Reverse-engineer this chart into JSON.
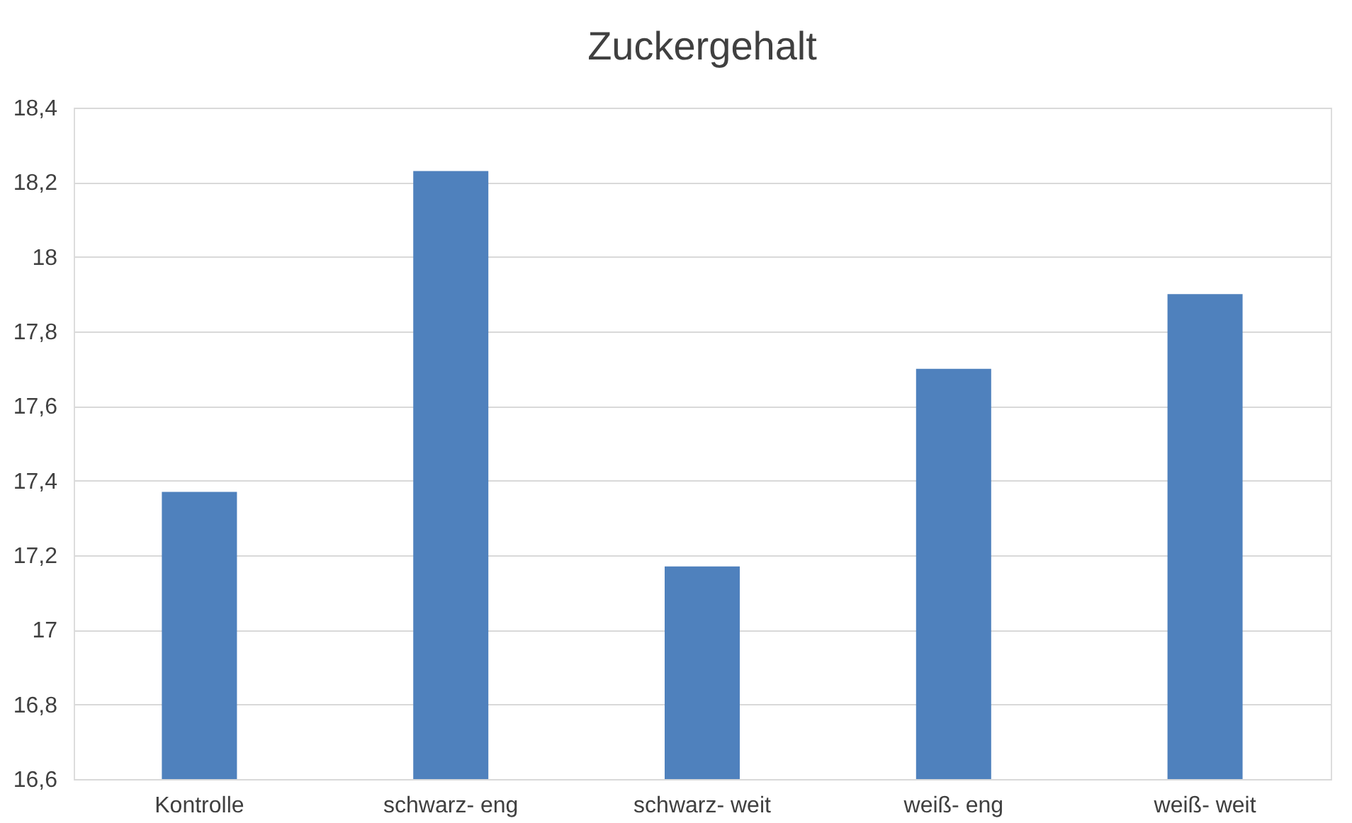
{
  "chart_data": {
    "type": "bar",
    "title": "Zuckergehalt",
    "categories": [
      "Kontrolle",
      "schwarz- eng",
      "schwarz- weit",
      "weiß- eng",
      "weiß- weit"
    ],
    "values": [
      17.37,
      18.23,
      17.17,
      17.7,
      17.9
    ],
    "color": "#4f81bd",
    "ylim": [
      16.6,
      18.4
    ],
    "yticks": [
      {
        "value": 16.6,
        "label": "16,6"
      },
      {
        "value": 16.8,
        "label": "16,8"
      },
      {
        "value": 17,
        "label": "17"
      },
      {
        "value": 17.2,
        "label": "17,2"
      },
      {
        "value": 17.4,
        "label": "17,4"
      },
      {
        "value": 17.6,
        "label": "17,6"
      },
      {
        "value": 17.8,
        "label": "17,8"
      },
      {
        "value": 18,
        "label": "18"
      },
      {
        "value": 18.2,
        "label": "18,2"
      },
      {
        "value": 18.4,
        "label": "18,4"
      }
    ],
    "grid": "y",
    "legend": false
  }
}
